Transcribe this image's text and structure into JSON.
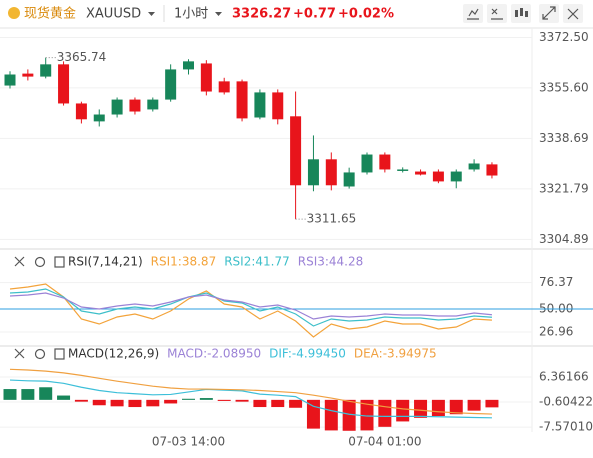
{
  "header": {
    "name": "现货黄金",
    "symbol": "XAUUSD",
    "interval": "1小时",
    "price": "3326.27",
    "change": "+0.77",
    "change_pct": "+0.02%"
  },
  "chart_data": [
    {
      "type": "candlestick",
      "categories": [
        null,
        null,
        null,
        null,
        null,
        null,
        null,
        null,
        null,
        null,
        "07-03 14:00",
        null,
        null,
        null,
        null,
        null,
        null,
        null,
        null,
        null,
        null,
        "07-04 01:00",
        null,
        null,
        null,
        null,
        null,
        null
      ],
      "open": [
        3356.4,
        3360.4,
        3359.4,
        3363.5,
        3350.4,
        3344.4,
        3346.7,
        3351.7,
        3348.4,
        3351.7,
        3361.8,
        3363.8,
        3357.8,
        3357.8,
        3345.7,
        3354.1,
        3346.1,
        3323.0,
        3331.7,
        3322.6,
        3327.3,
        3333.3,
        3327.8,
        3327.6,
        3327.6,
        3324.3,
        3328.3,
        3330.0
      ],
      "high": [
        3361.2,
        3361.8,
        3365.74,
        3364.5,
        3351.0,
        3348.4,
        3352.4,
        3352.4,
        3352.4,
        3363.5,
        3365.2,
        3364.9,
        3359.0,
        3358.4,
        3355.1,
        3355.1,
        3354.4,
        3339.7,
        3334.0,
        3328.9,
        3334.0,
        3334.0,
        3329.0,
        3328.3,
        3328.3,
        3328.3,
        3331.7,
        3330.7
      ],
      "low": [
        3355.4,
        3358.1,
        3358.8,
        3349.7,
        3343.7,
        3342.7,
        3345.7,
        3346.7,
        3347.7,
        3351.0,
        3360.1,
        3353.1,
        3353.4,
        3344.4,
        3345.1,
        3343.4,
        3311.65,
        3321.0,
        3321.3,
        3321.9,
        3326.6,
        3327.3,
        3327.3,
        3326.3,
        3323.7,
        3322.0,
        3327.6,
        3325.3
      ],
      "close": [
        3360.1,
        3359.4,
        3363.5,
        3350.4,
        3345.1,
        3346.7,
        3351.7,
        3347.7,
        3351.7,
        3361.8,
        3364.5,
        3354.4,
        3354.1,
        3345.4,
        3354.1,
        3345.1,
        3323.0,
        3331.7,
        3323.0,
        3327.3,
        3333.3,
        3328.3,
        3328.3,
        3326.6,
        3324.3,
        3327.6,
        3330.3,
        3326.27
      ],
      "up_color": "#17865a",
      "down_color": "#e8141b",
      "ylim": [
        3302,
        3375
      ],
      "yticks": [
        {
          "value": 3372.5,
          "label": "3372.50"
        },
        {
          "value": 3355.6,
          "label": "3355.60"
        },
        3338.69,
        3321.79,
        3304.89
      ],
      "grid": true
    },
    {
      "type": "line",
      "title": "RSI(7,14,21)",
      "series": [
        {
          "name": "RSI1:38.87",
          "color": "#f3a33a",
          "values": [
            70,
            72,
            75,
            62,
            40,
            35,
            42,
            45,
            40,
            48,
            60,
            68,
            55,
            52,
            40,
            48,
            38,
            22,
            35,
            30,
            32,
            38,
            35,
            35,
            30,
            32,
            40,
            38.87
          ]
        },
        {
          "name": "RSI2:41.77",
          "color": "#3dbfc9",
          "values": [
            66,
            67,
            70,
            62,
            48,
            45,
            50,
            52,
            50,
            55,
            62,
            66,
            58,
            56,
            48,
            52,
            45,
            33,
            40,
            38,
            39,
            42,
            41,
            41,
            39,
            40,
            43,
            41.77
          ]
        },
        {
          "name": "RSI3:44.28",
          "color": "#9b82d6",
          "values": [
            63,
            64,
            66,
            61,
            52,
            50,
            53,
            55,
            53,
            57,
            62,
            64,
            59,
            57,
            52,
            54,
            49,
            40,
            43,
            42,
            43,
            45,
            44,
            44,
            43,
            43,
            46,
            44.28
          ]
        }
      ],
      "hline": {
        "value": 50,
        "color": "#2d9fe0"
      },
      "ylim": [
        14,
        107
      ],
      "yticks": [
        76.37,
        {
          "value": 50,
          "label": "50.00"
        },
        26.96
      ]
    },
    {
      "type": "combo",
      "title": "MACD(12,26,9)",
      "series": [
        {
          "name": "MACD:-2.08950",
          "kind": "bar",
          "color": "#9b82d6",
          "up_color": "#17865a",
          "down_color": "#e8141b",
          "values": [
            3.0,
            3.0,
            3.5,
            1.2,
            -0.5,
            -1.5,
            -1.8,
            -2.0,
            -1.8,
            -1.0,
            0.3,
            0.5,
            -0.3,
            -0.5,
            -2.0,
            -2.0,
            -2.2,
            -8.0,
            -8.5,
            -8.6,
            -8.5,
            -7.5,
            -6.0,
            -5.0,
            -4.5,
            -4.0,
            -3.0,
            -2.0895
          ]
        },
        {
          "name": "DIF:-4.99450",
          "kind": "line",
          "color": "#3dbfd9",
          "values": [
            5.5,
            5.3,
            5.2,
            4.6,
            3.5,
            2.6,
            2.0,
            1.7,
            1.4,
            1.5,
            2.2,
            2.9,
            2.7,
            2.5,
            1.6,
            1.3,
            0.9,
            -1.8,
            -3.0,
            -4.0,
            -4.5,
            -4.6,
            -4.6,
            -4.6,
            -4.7,
            -4.8,
            -4.9,
            -4.9945
          ]
        },
        {
          "name": "DEA:-3.94975",
          "kind": "line",
          "color": "#f0a040",
          "values": [
            8.5,
            8.3,
            8.0,
            7.5,
            6.8,
            6.0,
            5.2,
            4.5,
            3.8,
            3.3,
            3.0,
            3.0,
            2.9,
            2.8,
            2.6,
            2.3,
            2.0,
            1.3,
            0.5,
            -0.4,
            -1.2,
            -1.9,
            -2.5,
            -2.9,
            -3.3,
            -3.6,
            -3.8,
            -3.94975
          ]
        }
      ],
      "ylim": [
        -8.94,
        14.7
      ],
      "yticks": [
        6.36166,
        -0.60422,
        {
          "value": -7.5701,
          "label": "-7.57010"
        }
      ]
    }
  ]
}
